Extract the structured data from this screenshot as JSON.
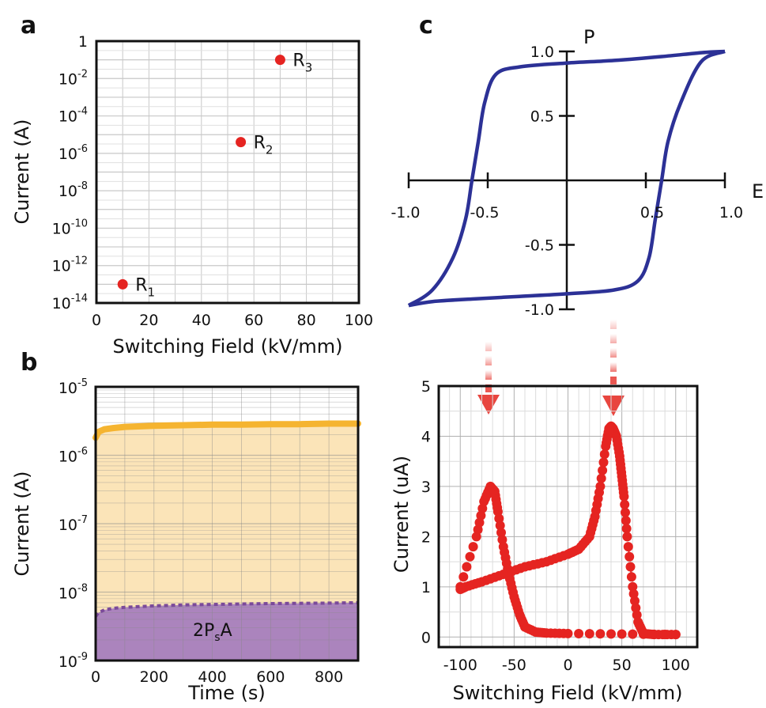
{
  "panels": {
    "a": {
      "panel_label": "a",
      "xlabel": "Switching Field (kV/mm)",
      "ylabel": "Current (A)",
      "xticks": [
        "0",
        "20",
        "40",
        "60",
        "80",
        "100"
      ],
      "yticks": [
        {
          "base": "10",
          "exp": "-14"
        },
        {
          "base": "10",
          "exp": "-12"
        },
        {
          "base": "10",
          "exp": "-10"
        },
        {
          "base": "10",
          "exp": "-8"
        },
        {
          "base": "10",
          "exp": "-6"
        },
        {
          "base": "10",
          "exp": "-4"
        },
        {
          "base": "10",
          "exp": "-2"
        },
        {
          "base": "1",
          "exp": ""
        }
      ],
      "point_labels": [
        {
          "main": "R",
          "sub": "1"
        },
        {
          "main": "R",
          "sub": "2"
        },
        {
          "main": "R",
          "sub": "3"
        }
      ]
    },
    "b": {
      "panel_label": "b",
      "xlabel": "Time (s)",
      "ylabel": "Current (A)",
      "xticks": [
        "0",
        "200",
        "400",
        "600",
        "800"
      ],
      "yticks": [
        {
          "base": "10",
          "exp": "-9"
        },
        {
          "base": "10",
          "exp": "-8"
        },
        {
          "base": "10",
          "exp": "-7"
        },
        {
          "base": "10",
          "exp": "-6"
        },
        {
          "base": "10",
          "exp": "-5"
        }
      ],
      "annotation": {
        "a": "2P",
        "sub": "s",
        "b": "A"
      }
    },
    "c": {
      "panel_label": "c",
      "x_axis_name": "E",
      "y_axis_name": "P",
      "xticks": [
        "-1.0",
        "-0.5",
        "0.5",
        "1.0"
      ],
      "yticks": [
        "1.0",
        "0.5",
        "-0.5",
        "-1.0"
      ]
    },
    "d": {
      "xlabel": "Switching Field (kV/mm)",
      "ylabel": "Current (uA)",
      "xticks": [
        "-100",
        "-50",
        "0",
        "50",
        "100"
      ],
      "yticks": [
        "0",
        "1",
        "2",
        "3",
        "4",
        "5"
      ]
    }
  },
  "colors": {
    "scatter": "#e52421",
    "leakage": "#f5b430",
    "leakage_fill": "#fbe4b8",
    "switching": "#7b4a9a",
    "switching_fill": "#ab84bd",
    "loop": "#2c3196",
    "arrow": "#e8463f"
  },
  "chart_data": [
    {
      "type": "scatter",
      "xlabel": "Switching Field (kV/mm)",
      "ylabel": "Current (A)",
      "xlim": [
        0,
        100
      ],
      "ylim": [
        1e-14,
        1
      ],
      "yscale": "log",
      "grid": true,
      "points": [
        {
          "label": "R1",
          "x": 10,
          "y": 1e-13
        },
        {
          "label": "R2",
          "x": 55,
          "y": 4e-06
        },
        {
          "label": "R3",
          "x": 70,
          "y": 0.1
        }
      ]
    },
    {
      "type": "area",
      "xlabel": "Time (s)",
      "ylabel": "Current (A)",
      "xlim": [
        0,
        900
      ],
      "ylim": [
        1e-09,
        1e-05
      ],
      "yscale": "log",
      "grid": true,
      "x": [
        0,
        10,
        30,
        60,
        100,
        200,
        300,
        400,
        500,
        600,
        700,
        800,
        900
      ],
      "series": [
        {
          "values": [
            1.8e-06,
            2.2e-06,
            2.4e-06,
            2.5e-06,
            2.6e-06,
            2.7e-06,
            2.75e-06,
            2.8e-06,
            2.8e-06,
            2.85e-06,
            2.85e-06,
            2.9e-06,
            2.9e-06
          ]
        },
        {
          "values": [
            4.4e-09,
            5e-09,
            5.5e-09,
            5.8e-09,
            6e-09,
            6.3e-09,
            6.5e-09,
            6.6e-09,
            6.7e-09,
            6.8e-09,
            6.85e-09,
            6.9e-09,
            7e-09
          ]
        }
      ]
    },
    {
      "type": "line",
      "xlim": [
        -1.0,
        1.0
      ],
      "ylim": [
        -1.0,
        1.0
      ],
      "grid": false,
      "series": [
        {
          "x": [
            1.0,
            0.85,
            0.6,
            0.3,
            0.0,
            -0.3,
            -0.45,
            -0.52,
            -0.56,
            -0.6,
            -0.64,
            -0.72,
            -0.85,
            -1.0
          ],
          "y": [
            1.0,
            0.99,
            0.96,
            0.93,
            0.91,
            0.88,
            0.82,
            0.6,
            0.3,
            0.0,
            -0.3,
            -0.6,
            -0.85,
            -0.97
          ]
        },
        {
          "x": [
            -1.0,
            -0.85,
            -0.6,
            -0.3,
            0.0,
            0.3,
            0.45,
            0.52,
            0.56,
            0.6,
            0.64,
            0.72,
            0.85,
            1.0
          ],
          "y": [
            -0.97,
            -0.94,
            -0.92,
            -0.9,
            -0.88,
            -0.85,
            -0.78,
            -0.6,
            -0.3,
            0.0,
            0.3,
            0.6,
            0.92,
            1.0
          ]
        }
      ]
    },
    {
      "type": "scatter",
      "xlabel": "Switching Field (kV/mm)",
      "ylabel": "Current (uA)",
      "xlim": [
        -120,
        120
      ],
      "ylim": [
        -0.2,
        5
      ],
      "grid": true,
      "series": [
        {
          "x": [
            -100,
            -85,
            -78,
            -72,
            -68,
            -65,
            -60,
            -55,
            -50,
            -45,
            -40,
            -30,
            -20,
            0,
            50,
            100
          ],
          "y": [
            1.0,
            2.0,
            2.7,
            3.0,
            2.9,
            2.5,
            1.8,
            1.25,
            0.8,
            0.45,
            0.2,
            0.1,
            0.08,
            0.07,
            0.06,
            0.05
          ]
        },
        {
          "x": [
            100,
            80,
            70,
            65,
            60,
            55,
            52,
            50,
            48,
            45,
            42,
            40,
            38,
            35,
            30,
            25,
            20,
            10,
            0,
            -20,
            -40,
            -60,
            -80,
            -95,
            -100
          ],
          "y": [
            0.05,
            0.05,
            0.07,
            0.3,
            1.0,
            2.0,
            2.8,
            3.2,
            3.6,
            4.0,
            4.15,
            4.2,
            4.15,
            3.8,
            3.0,
            2.4,
            2.0,
            1.75,
            1.65,
            1.5,
            1.4,
            1.25,
            1.1,
            1.0,
            0.95
          ]
        }
      ]
    }
  ]
}
